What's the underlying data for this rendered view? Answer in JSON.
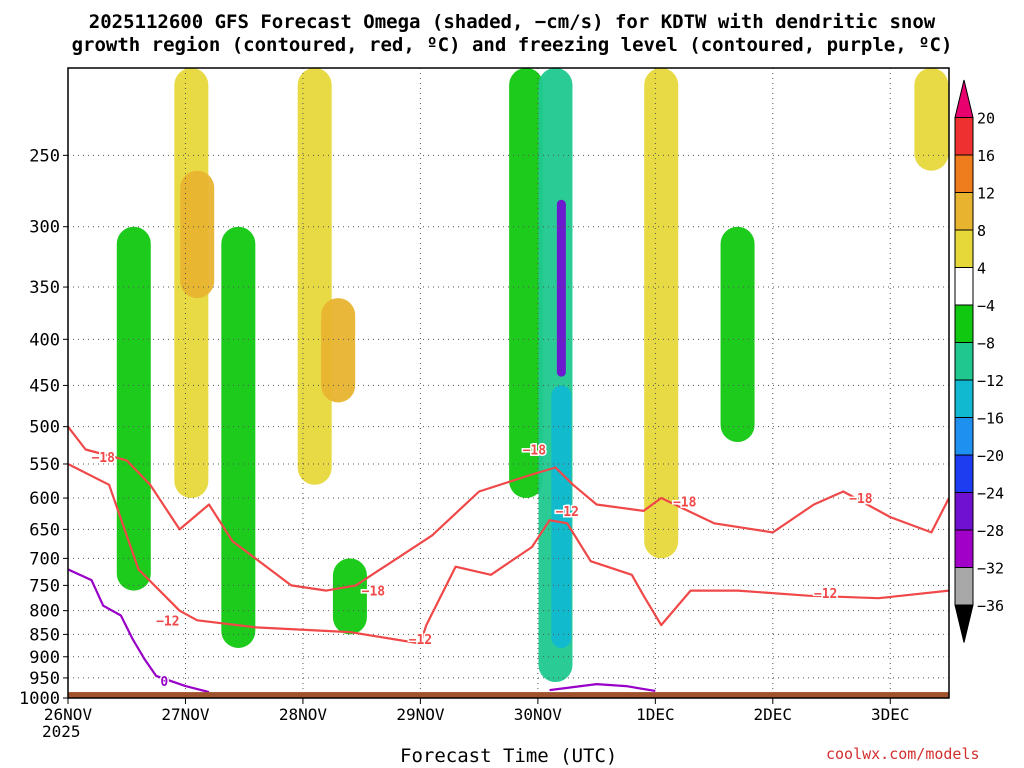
{
  "title_line1": "2025112600 GFS Forecast Omega (shaded, −cm/s) for KDTW with dendritic snow",
  "title_line2": "growth region (contoured, red, ºC) and freezing level (contoured, purple, ºC)",
  "credit": "coolwx.com/models",
  "chart_data": {
    "type": "heatmap",
    "title": "2025112600 GFS Forecast Omega (shaded, −cm/s) for KDTW with dendritic snow growth region (contoured, red, ºC) and freezing level (contoured, purple, ºC)",
    "xlabel": "Forecast Time (UTC)",
    "ylabel": "",
    "x_ticks": [
      "26NOV",
      "27NOV",
      "28NOV",
      "29NOV",
      "30NOV",
      "1DEC",
      "2DEC",
      "3DEC"
    ],
    "x_year": "2025",
    "x_range_days_since_26NOV_00Z": [
      0,
      7.5
    ],
    "y_ticks": [
      250,
      300,
      350,
      400,
      450,
      500,
      550,
      600,
      650,
      700,
      750,
      800,
      850,
      900,
      950,
      1000
    ],
    "y_range_hPa": [
      200,
      1000
    ],
    "y_axis": "pressure (hPa), log scale, inverted",
    "colorbar": {
      "levels": [
        "20",
        "16",
        "12",
        "8",
        "4",
        "−4",
        "−8",
        "−12",
        "−16",
        "−20",
        "−24",
        "−28",
        "−32",
        "−36"
      ],
      "colors": [
        "#e8006f",
        "#ee3030",
        "#ef7c1d",
        "#e8b430",
        "#e7d83a",
        "#ffffff",
        "#10c810",
        "#20c890",
        "#10b8d0",
        "#1e90f0",
        "#1e3cf0",
        "#7010d0",
        "#a000c8",
        "#a8a8a8",
        "#000000"
      ]
    },
    "omega_regions": [
      {
        "t": 0.56,
        "p_top": 300,
        "p_bot": 760,
        "omega": -6,
        "note": "upward motion band"
      },
      {
        "t": 1.05,
        "p_top": 200,
        "p_bot": 600,
        "omega": 6,
        "note": "subsidence plume"
      },
      {
        "t": 1.1,
        "p_top": 260,
        "p_bot": 360,
        "omega": 10,
        "note": "core"
      },
      {
        "t": 1.45,
        "p_top": 300,
        "p_bot": 880,
        "omega": -6
      },
      {
        "t": 2.1,
        "p_top": 200,
        "p_bot": 580,
        "omega": 6
      },
      {
        "t": 2.3,
        "p_top": 360,
        "p_bot": 470,
        "omega": 10
      },
      {
        "t": 2.4,
        "p_top": 700,
        "p_bot": 850,
        "omega": -6
      },
      {
        "t": 3.9,
        "p_top": 200,
        "p_bot": 600,
        "omega": -6
      },
      {
        "t": 4.15,
        "p_top": 200,
        "p_bot": 960,
        "omega": -10
      },
      {
        "t": 4.2,
        "p_top": 280,
        "p_bot": 440,
        "omega": -26,
        "note": "strongest ascent"
      },
      {
        "t": 4.2,
        "p_top": 450,
        "p_bot": 880,
        "omega": -14
      },
      {
        "t": 5.05,
        "p_top": 200,
        "p_bot": 700,
        "omega": 5
      },
      {
        "t": 5.7,
        "p_top": 300,
        "p_bot": 520,
        "omega": -6
      },
      {
        "t": 7.35,
        "p_top": 200,
        "p_bot": 260,
        "omega": 5
      }
    ],
    "contour_labels": [
      {
        "label": "−18",
        "t": 0.3,
        "p": 540
      },
      {
        "label": "−12",
        "t": 0.85,
        "p": 820
      },
      {
        "label": "−18",
        "t": 2.6,
        "p": 760
      },
      {
        "label": "−12",
        "t": 3.0,
        "p": 860
      },
      {
        "label": "−18",
        "t": 3.97,
        "p": 530
      },
      {
        "label": "−12",
        "t": 4.25,
        "p": 620
      },
      {
        "label": "−18",
        "t": 5.25,
        "p": 605
      },
      {
        "label": "−12",
        "t": 6.45,
        "p": 765
      },
      {
        "label": "−18",
        "t": 6.75,
        "p": 600
      },
      {
        "label": "0",
        "t": 0.82,
        "p": 958
      }
    ],
    "contours": [
      {
        "name": "-18C",
        "color": "#f04848",
        "points": [
          [
            0,
            500
          ],
          [
            0.15,
            530
          ],
          [
            0.5,
            545
          ],
          [
            0.7,
            580
          ],
          [
            0.95,
            650
          ],
          [
            1.2,
            610
          ],
          [
            1.4,
            670
          ],
          [
            1.9,
            750
          ],
          [
            2.2,
            760
          ],
          [
            2.45,
            750
          ],
          [
            3.1,
            660
          ],
          [
            3.5,
            590
          ],
          [
            3.95,
            565
          ],
          [
            4.15,
            555
          ],
          [
            4.3,
            580
          ],
          [
            4.5,
            610
          ],
          [
            4.9,
            620
          ],
          [
            5.05,
            600
          ],
          [
            5.5,
            640
          ],
          [
            6.0,
            655
          ],
          [
            6.35,
            610
          ],
          [
            6.6,
            590
          ],
          [
            7.0,
            630
          ],
          [
            7.35,
            655
          ],
          [
            7.5,
            600
          ]
        ]
      },
      {
        "name": "-12C",
        "color": "#f04848",
        "points": [
          [
            0,
            550
          ],
          [
            0.35,
            580
          ],
          [
            0.6,
            720
          ],
          [
            0.95,
            800
          ],
          [
            1.1,
            820
          ],
          [
            1.6,
            835
          ],
          [
            2.4,
            845
          ],
          [
            3.0,
            870
          ],
          [
            3.05,
            830
          ],
          [
            3.3,
            715
          ],
          [
            3.6,
            730
          ],
          [
            3.95,
            680
          ],
          [
            4.1,
            635
          ],
          [
            4.25,
            640
          ],
          [
            4.45,
            705
          ],
          [
            4.8,
            730
          ],
          [
            4.9,
            770
          ],
          [
            5.05,
            830
          ],
          [
            5.3,
            760
          ],
          [
            5.7,
            760
          ],
          [
            6.3,
            770
          ],
          [
            6.9,
            775
          ],
          [
            7.5,
            760
          ]
        ]
      },
      {
        "name": "0C",
        "color": "#9800c8",
        "points": [
          [
            0,
            720
          ],
          [
            0.2,
            740
          ],
          [
            0.3,
            790
          ],
          [
            0.45,
            810
          ],
          [
            0.55,
            860
          ],
          [
            0.65,
            905
          ],
          [
            0.75,
            945
          ],
          [
            1.0,
            970
          ],
          [
            1.2,
            985
          ]
        ]
      },
      {
        "name": "0C-b",
        "color": "#9800c8",
        "points": [
          [
            4.1,
            980
          ],
          [
            4.5,
            965
          ],
          [
            4.75,
            970
          ],
          [
            5.0,
            982
          ]
        ]
      }
    ],
    "surface_pressure_hPa": 985
  }
}
